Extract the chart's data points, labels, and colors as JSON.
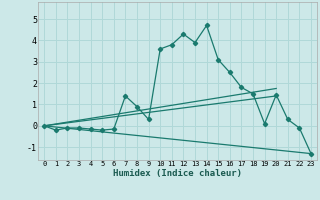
{
  "xlabel": "Humidex (Indice chaleur)",
  "bg_color": "#cce8e8",
  "line_color": "#1a7a6e",
  "grid_color": "#b0d8d8",
  "xlim": [
    -0.5,
    23.5
  ],
  "ylim": [
    -1.6,
    5.8
  ],
  "yticks": [
    -1,
    0,
    1,
    2,
    3,
    4,
    5
  ],
  "xticks": [
    0,
    1,
    2,
    3,
    4,
    5,
    6,
    7,
    8,
    9,
    10,
    11,
    12,
    13,
    14,
    15,
    16,
    17,
    18,
    19,
    20,
    21,
    22,
    23
  ],
  "line1_x": [
    0,
    1,
    2,
    3,
    4,
    5,
    6,
    7,
    8,
    9,
    10,
    11,
    12,
    13,
    14,
    15,
    16,
    17,
    18,
    19,
    20,
    21,
    22,
    23
  ],
  "line1_y": [
    0,
    -0.2,
    -0.1,
    -0.1,
    -0.15,
    -0.2,
    -0.15,
    1.4,
    0.9,
    0.3,
    3.6,
    3.8,
    4.3,
    3.9,
    4.7,
    3.1,
    2.5,
    1.8,
    1.5,
    0.1,
    1.45,
    0.3,
    -0.1,
    -1.3
  ],
  "line2_x": [
    0,
    20
  ],
  "line2_y": [
    0,
    1.75
  ],
  "line3_x": [
    0,
    20
  ],
  "line3_y": [
    0,
    1.4
  ],
  "line4_x": [
    0,
    23
  ],
  "line4_y": [
    0,
    -1.3
  ]
}
